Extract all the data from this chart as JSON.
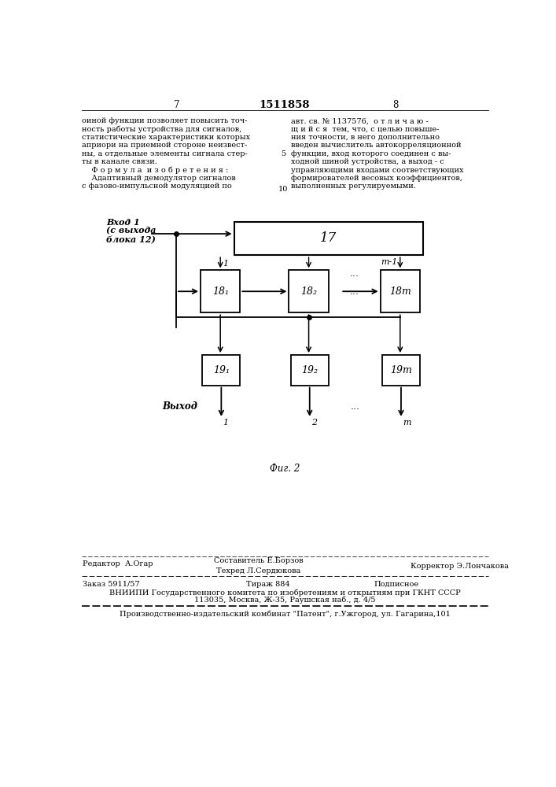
{
  "bg_color": "#ffffff",
  "top_text_left": "оиной функции позволяет повысить точ-\nность работы устройства для сигналов,\nстатистические характеристики которых\nаприори на приемной стороне неизвест-\nны, а отдельные элементы сигнала стер-\nты в канале связи.\n    Ф о р м у л а  и з о б р е т е н и я :\n    Адаптивный демодулятор сигналов\nс фазово-импульсной модуляцией по",
  "top_text_right": "авт. св. № 1137576,  о т л и ч а ю -\nщ и й с я  тем, что, с целью повыше-\nния точности, в него дополнительно\nвведен вычислитель автокорреляционной\nфункции, вход которого соединен с вы-\nходной шиной устройства, а выход - с\nуправляющими входами соответствующих\nформирователей весовых коэффициентов,\nвыполненных регулируемыми.",
  "line_num_5": "5",
  "line_num_10": "10",
  "page_num_left": "7",
  "page_num_center": "1511858",
  "page_num_right": "8",
  "fig_caption": "Фиг. 2",
  "input_label_line1": "Вход 1",
  "input_label_line2": "(с выхода",
  "input_label_line3": "блока 12)",
  "block17_label": "17",
  "block18_labels": [
    "18₁",
    "18₂",
    "18m"
  ],
  "block19_labels": [
    "19₁",
    "19₂",
    "19m"
  ],
  "output_label": "Выход",
  "out_num1": "1",
  "out_num2": "2",
  "out_numm": "m",
  "arrow_label_1": "1",
  "arrow_label_m1": "m-1",
  "dots": "...",
  "footer_left_label": "Редактор  А.Огар",
  "footer_center_label1": "Составитель Е.Борзов",
  "footer_center_label2": "Техред Л.Сердюкова",
  "footer_right_label": "Корректор Э.Лончакова",
  "footer_zakaz": "Заказ 5911/57",
  "footer_tirazh": "Тираж 884",
  "footer_podpisnoe": "Подписное",
  "footer_vniipи": "ВНИИПИ Государственного комитета по изобретениям и открытиям при ГКНТ СССР",
  "footer_address": "113035, Москва, Ж-35, Раушская наб., д. 4/5",
  "footer_patent": "Производственно-издательский комбинат \"Патент\", г.Ужгород, ул. Гагарина,101"
}
